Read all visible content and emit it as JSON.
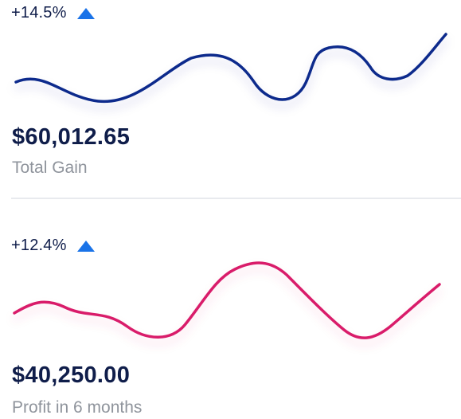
{
  "cards": [
    {
      "change": "+14.5%",
      "trend_icon": "triangle-up-icon",
      "value": "$60,012.65",
      "label": "Total Gain",
      "line_color": "#0a2a8c",
      "arrow_color": "#1a73e8"
    },
    {
      "change": "+12.4%",
      "trend_icon": "triangle-up-icon",
      "value": "$40,250.00",
      "label": "Profit in 6 months",
      "line_color": "#d91e6a",
      "arrow_color": "#1a73e8"
    }
  ]
}
